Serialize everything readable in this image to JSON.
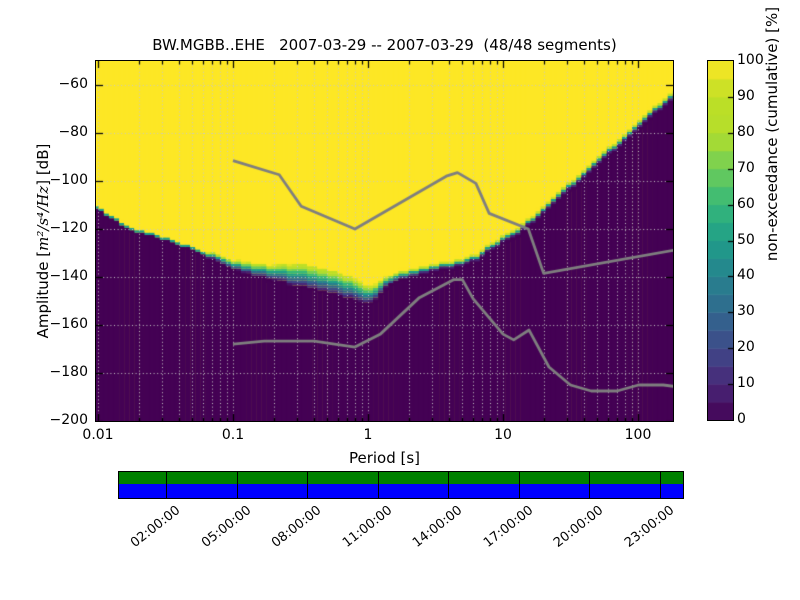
{
  "title": "BW.MGBB..EHE   2007-03-29 -- 2007-03-29  (48/48 segments)",
  "axes": {
    "xlabel": "Period [s]",
    "ylabel_prefix": "Amplitude [",
    "ylabel_math": "m²/s⁴/Hz",
    "ylabel_suffix": "] [dB]",
    "x_tick_values": [
      0.01,
      0.1,
      1,
      10,
      100
    ],
    "x_tick_labels": [
      "0.01",
      "0.1",
      "1",
      "10",
      "100"
    ],
    "y_tick_values": [
      -60,
      -80,
      -100,
      -120,
      -140,
      -160,
      -180,
      -200
    ],
    "y_tick_labels": [
      "−60",
      "−80",
      "−100",
      "−120",
      "−140",
      "−160",
      "−180",
      "−200"
    ]
  },
  "colorbar": {
    "label": "non-exceedance (cumulative) [%]",
    "tick_values": [
      0,
      10,
      20,
      30,
      40,
      50,
      60,
      70,
      80,
      90,
      100
    ],
    "tick_labels": [
      "0",
      "10",
      "20",
      "30",
      "40",
      "50",
      "60",
      "70",
      "80",
      "90",
      "100"
    ]
  },
  "chart_data": {
    "type": "heatmap",
    "title": "BW.MGBB..EHE   2007-03-29 -- 2007-03-29  (48/48 segments)",
    "xlabel": "Period [s]",
    "ylabel": "Amplitude [m²/s⁴/Hz] [dB]",
    "colorbar_label": "non-exceedance (cumulative) [%]",
    "x_scale": "log",
    "xlim": [
      0.0097,
      186
    ],
    "ylim": [
      -200,
      -50
    ],
    "grid": true,
    "segments_used": 48,
    "segments_total": 48,
    "percent_levels": 48,
    "period_step_octaves": 0.125,
    "db_bin_width": 1,
    "colormap_stops": [
      "#440154",
      "#482878",
      "#3e4989",
      "#31688e",
      "#26828e",
      "#1f9e89",
      "#35b779",
      "#6ece58",
      "#b5de2b",
      "#bddf26",
      "#fde725"
    ],
    "nonexceedance_50pct_boundary": [
      [
        0.01,
        -111.5
      ],
      [
        0.012,
        -114.5
      ],
      [
        0.016,
        -118.5
      ],
      [
        0.02,
        -121
      ],
      [
        0.028,
        -123
      ],
      [
        0.04,
        -126
      ],
      [
        0.055,
        -129
      ],
      [
        0.075,
        -132
      ],
      [
        0.1,
        -135
      ],
      [
        0.14,
        -136.5
      ],
      [
        0.2,
        -138
      ],
      [
        0.28,
        -138.8
      ],
      [
        0.4,
        -140
      ],
      [
        0.5,
        -141.3
      ],
      [
        0.6,
        -142.5
      ],
      [
        0.75,
        -144.5
      ],
      [
        0.9,
        -146.5
      ],
      [
        1.05,
        -147.5
      ],
      [
        1.2,
        -145
      ],
      [
        1.4,
        -141.5
      ],
      [
        1.7,
        -139.5
      ],
      [
        2.2,
        -137.8
      ],
      [
        3,
        -136.3
      ],
      [
        4,
        -134.8
      ],
      [
        5,
        -133.5
      ],
      [
        6.5,
        -131.5
      ],
      [
        8,
        -127.5
      ],
      [
        10,
        -124.3
      ],
      [
        13.4,
        -120.4
      ],
      [
        16,
        -116.5
      ],
      [
        20,
        -111.7
      ],
      [
        26,
        -106
      ],
      [
        34,
        -100.2
      ],
      [
        45,
        -94.1
      ],
      [
        60,
        -87.9
      ],
      [
        80,
        -81.6
      ],
      [
        110,
        -74.7
      ],
      [
        150,
        -68
      ],
      [
        186,
        -63.3
      ]
    ],
    "transition_halfwidth_db": [
      [
        0.01,
        0.8
      ],
      [
        0.06,
        1.0
      ],
      [
        0.1,
        2.0
      ],
      [
        0.2,
        3.2
      ],
      [
        0.3,
        5.0
      ],
      [
        0.7,
        5.0
      ],
      [
        0.9,
        4.2
      ],
      [
        1.1,
        3.5
      ],
      [
        1.4,
        2.0
      ],
      [
        2,
        1.5
      ],
      [
        3,
        1.2
      ],
      [
        10,
        1.2
      ],
      [
        186,
        1.3
      ]
    ],
    "noise_models": {
      "color": "#7f7f7f",
      "nhnm": [
        [
          0.1,
          -91.5
        ],
        [
          0.22,
          -97.4
        ],
        [
          0.32,
          -110.5
        ],
        [
          0.8,
          -120.0
        ],
        [
          3.8,
          -98.0
        ],
        [
          4.6,
          -96.5
        ],
        [
          6.3,
          -101.0
        ],
        [
          7.9,
          -113.5
        ],
        [
          15.4,
          -120.0
        ],
        [
          20.0,
          -138.5
        ],
        [
          186,
          -128.8
        ]
      ],
      "nlnm": [
        [
          0.1,
          -168.0
        ],
        [
          0.17,
          -166.7
        ],
        [
          0.4,
          -166.7
        ],
        [
          0.8,
          -169.2
        ],
        [
          1.24,
          -163.7
        ],
        [
          2.4,
          -148.6
        ],
        [
          4.3,
          -141.1
        ],
        [
          5.0,
          -141.1
        ],
        [
          6.0,
          -149.0
        ],
        [
          10.0,
          -163.8
        ],
        [
          12.0,
          -166.2
        ],
        [
          15.6,
          -162.1
        ],
        [
          21.9,
          -177.5
        ],
        [
          31.6,
          -185.0
        ],
        [
          45.0,
          -187.5
        ],
        [
          70.0,
          -187.5
        ],
        [
          101.0,
          -185.0
        ],
        [
          154.0,
          -185.0
        ],
        [
          186,
          -185.6
        ]
      ]
    },
    "timeline": {
      "start_hour": 0,
      "end_hour": 24,
      "tick_hours": [
        2,
        5,
        8,
        11,
        14,
        17,
        20,
        23
      ],
      "tick_labels": [
        "02:00:00",
        "05:00:00",
        "08:00:00",
        "11:00:00",
        "14:00:00",
        "17:00:00",
        "20:00:00",
        "23:00:00"
      ],
      "coverage_color": "#008000",
      "extent_color": "#0000ff"
    }
  }
}
